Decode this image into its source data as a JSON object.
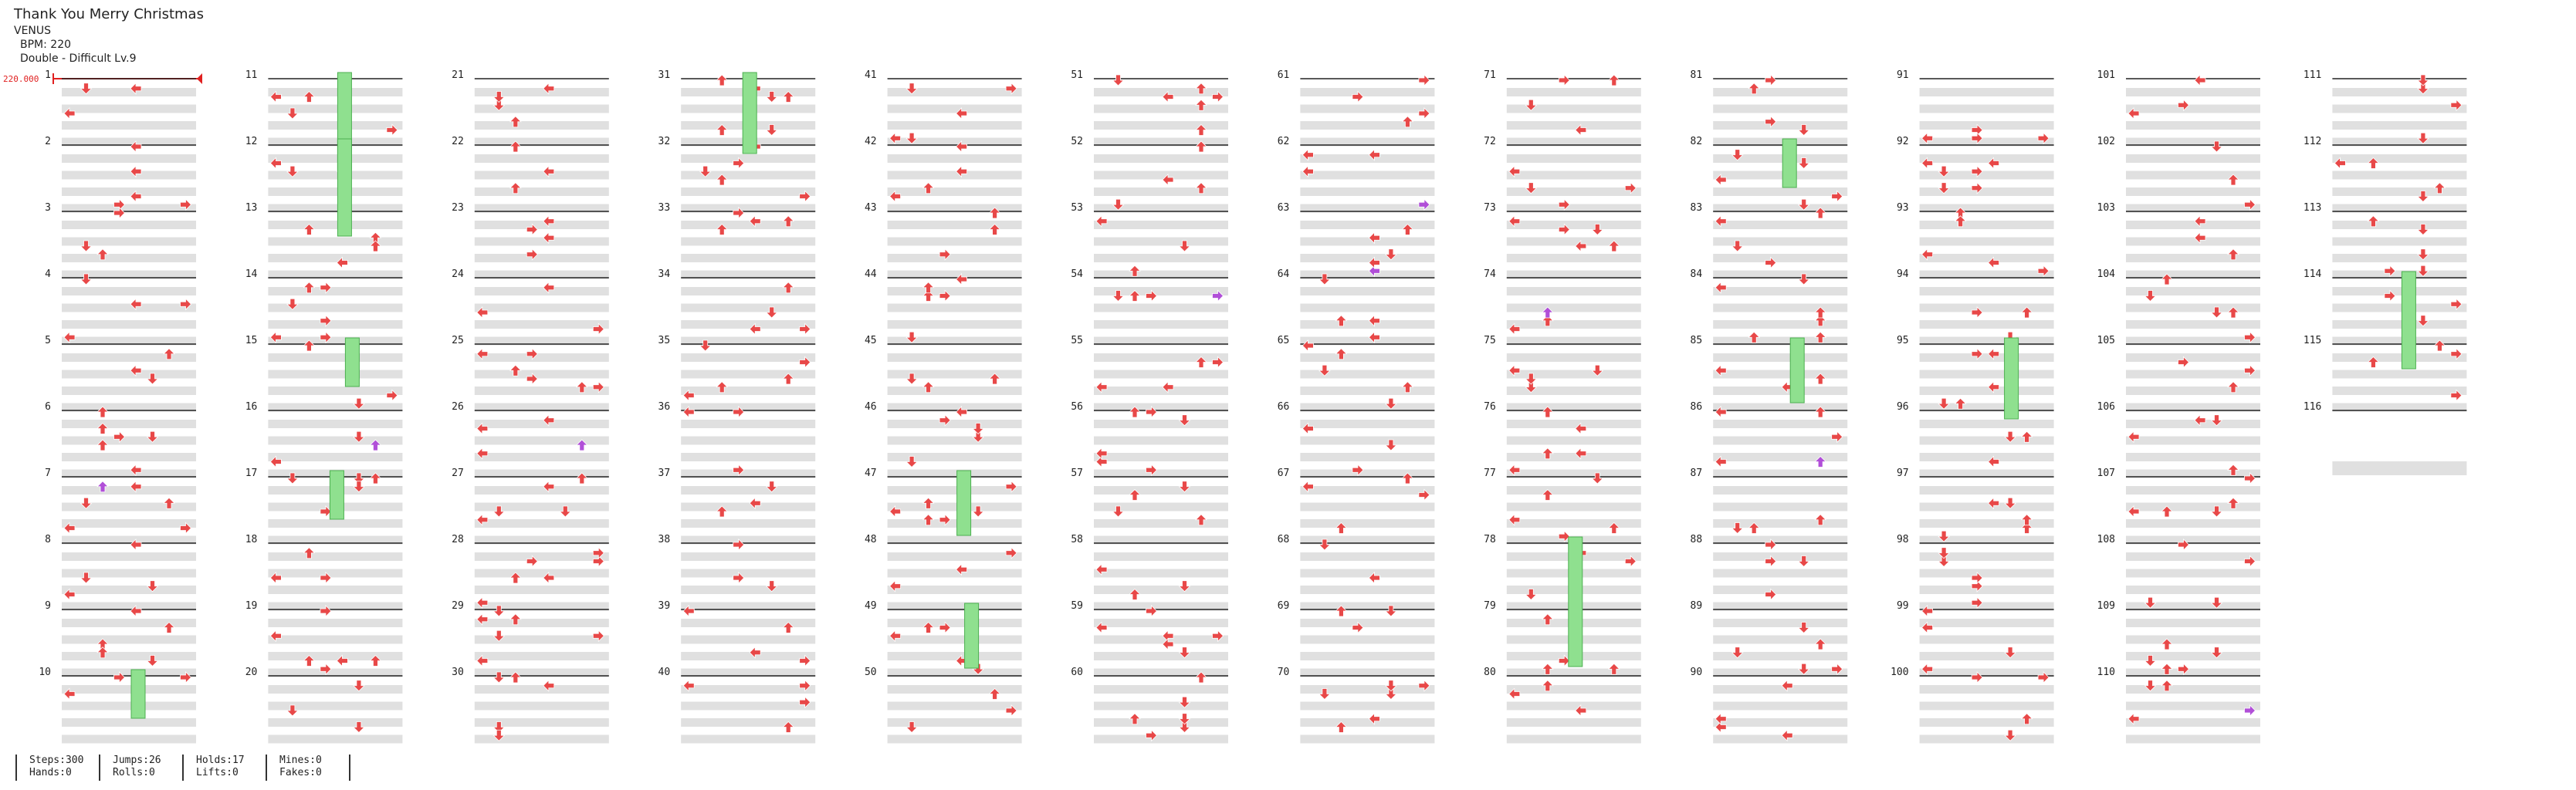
{
  "song": {
    "title": "Thank You Merry Christmas",
    "artist": "VENUS",
    "bpm": "BPM: 220",
    "chart": "Double - Difficult Lv.9"
  },
  "bpm_marker": "220.000",
  "measure_count": 116,
  "colors": {
    "arrow": "#e84848",
    "arrow_alt": "#b14fd8",
    "hold": "#8fe08f",
    "hold_border": "#4caf50",
    "band": "#e0e0e0",
    "line": "#222222"
  },
  "stats": [
    {
      "top": "Steps:300",
      "bottom": "Hands:0"
    },
    {
      "top": "Jumps:26",
      "bottom": "Rolls:0"
    },
    {
      "top": "Holds:17",
      "bottom": "Lifts:0"
    },
    {
      "top": "Mines:0",
      "bottom": "Fakes:0"
    }
  ]
}
